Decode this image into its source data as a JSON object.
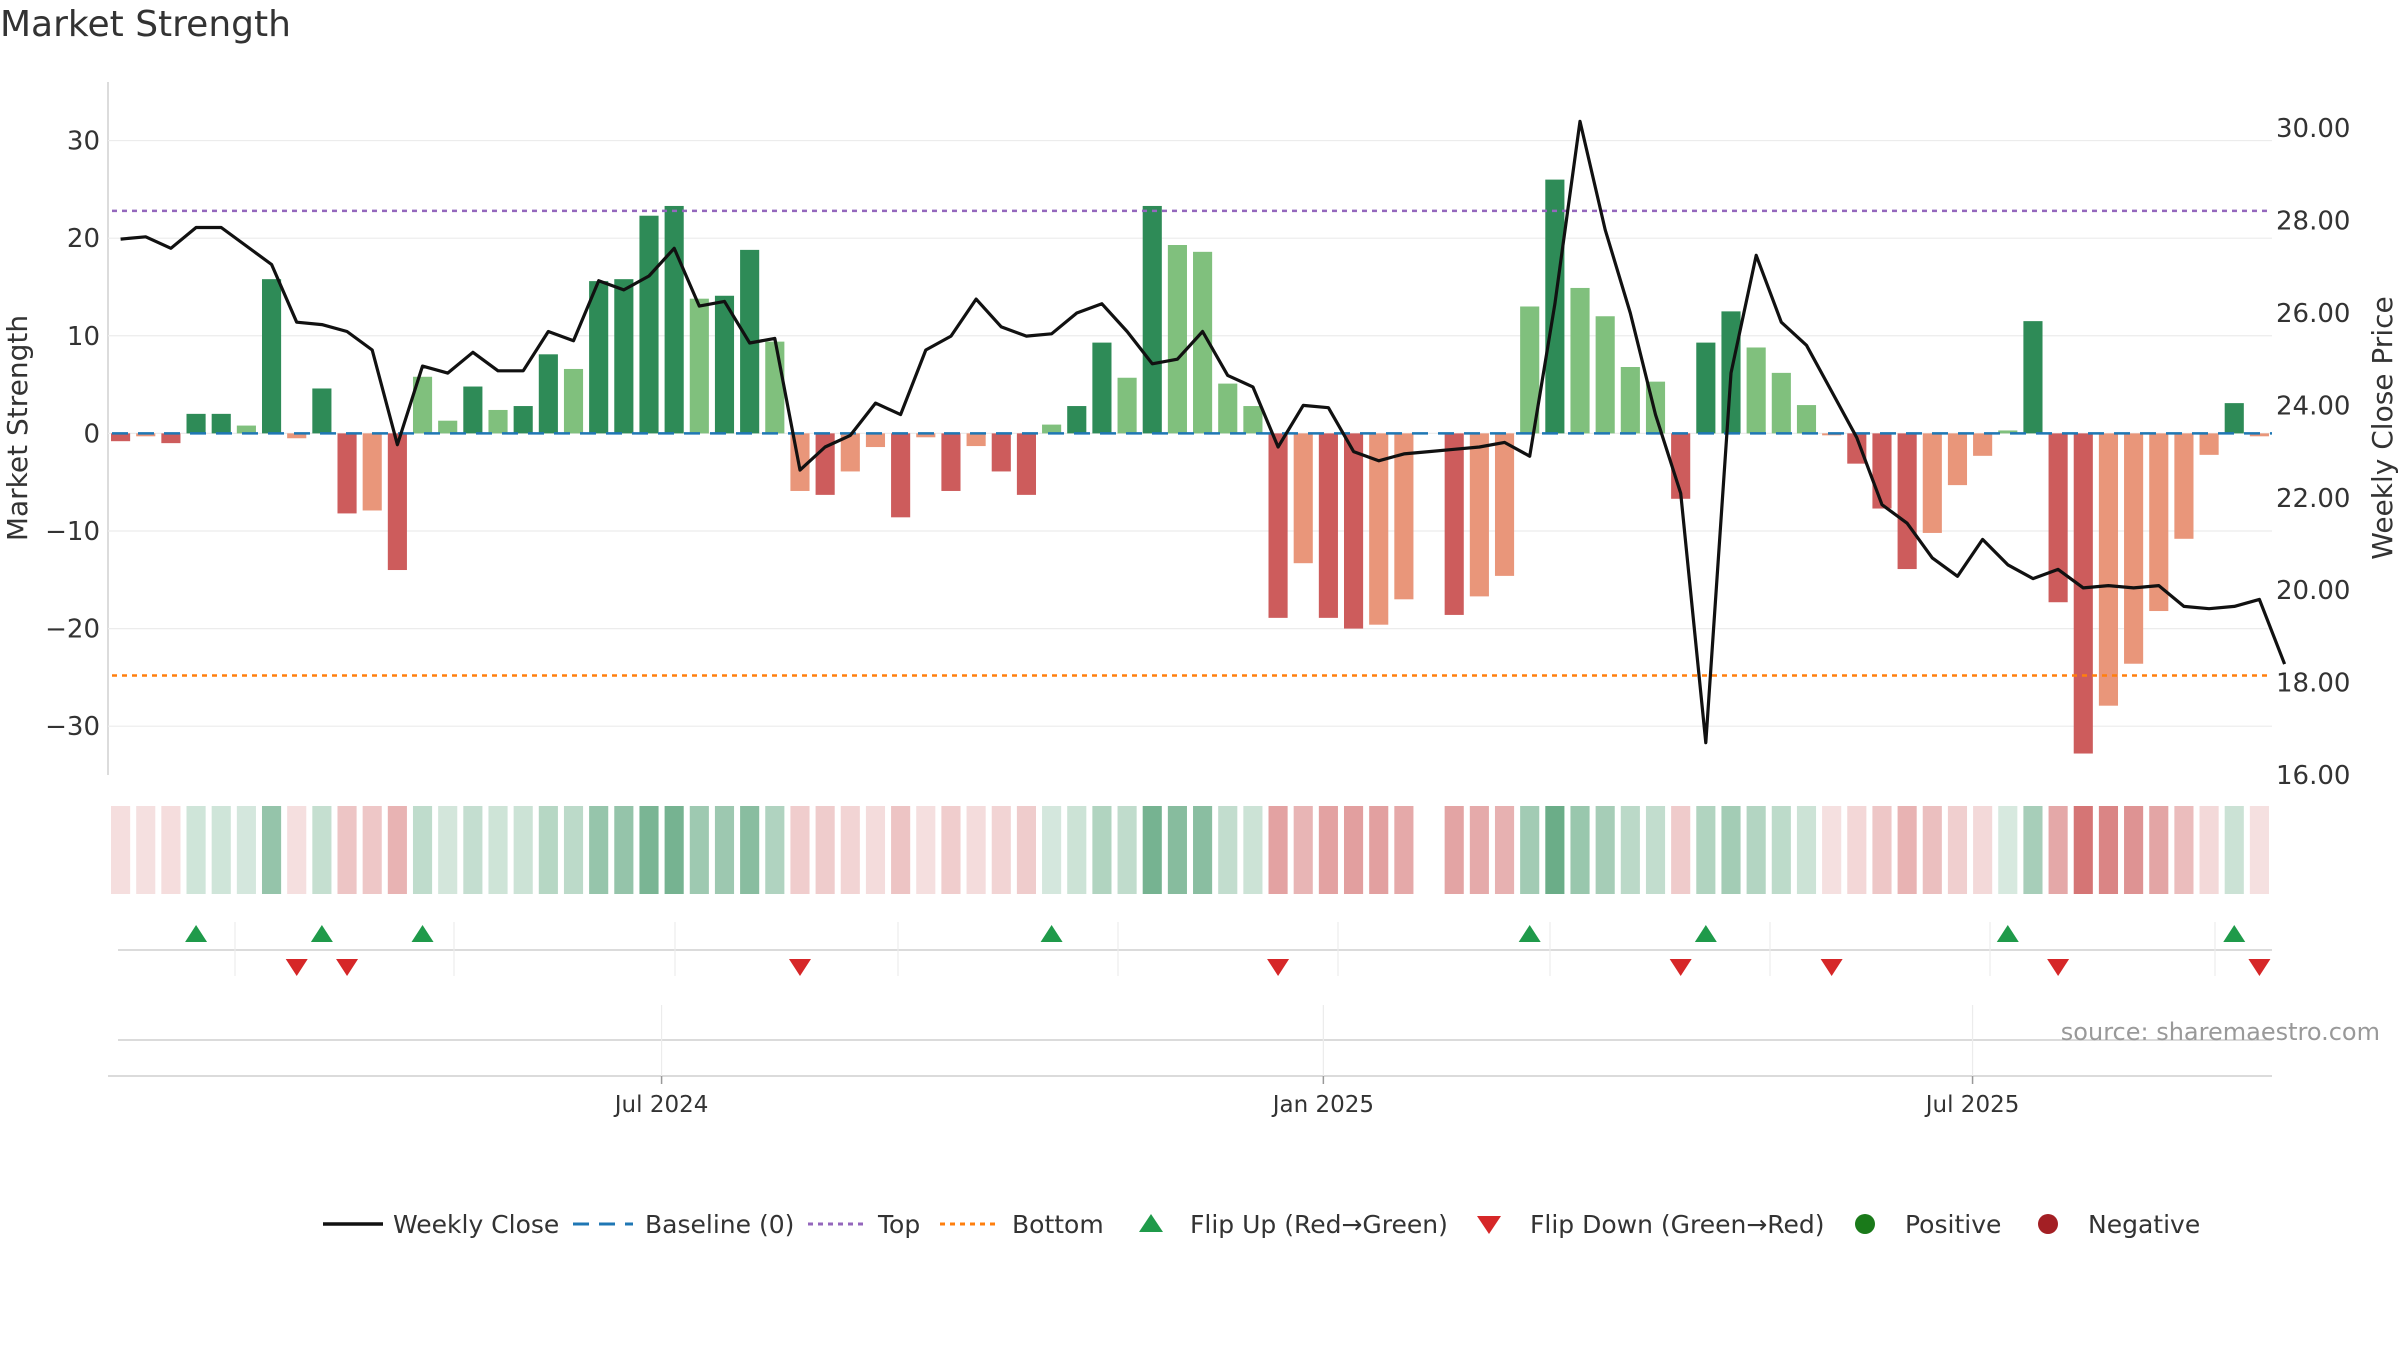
{
  "chart_data": {
    "type": "bar",
    "title": "Market Strength",
    "ylabel_left": "Market Strength",
    "ylabel_right": "Weekly Close Price",
    "ylim_left": [
      -35,
      36
    ],
    "ylim_right": [
      16,
      31
    ],
    "yticks_left": [
      30,
      20,
      10,
      0,
      -10,
      -20,
      -30
    ],
    "yticks_left_labels": [
      "30",
      "20",
      "10",
      "0",
      "−10",
      "−20",
      "−30"
    ],
    "yticks_right": [
      30,
      28,
      26,
      24,
      22,
      20,
      18,
      16
    ],
    "yticks_right_labels": [
      "30.00",
      "28.00",
      "26.00",
      "24.00",
      "22.00",
      "20.00",
      "18.00",
      "16.00"
    ],
    "x_ticks": [
      {
        "week": 22,
        "label": "Jul 2024"
      },
      {
        "week": 48.3,
        "label": "Jan 2025"
      },
      {
        "week": 74.1,
        "label": "Jul 2025"
      }
    ],
    "top_line": 22.8,
    "bottom_line": -24.8,
    "baseline": 0,
    "strength": [
      -0.8,
      -0.3,
      -1,
      2,
      2,
      0.8,
      15.8,
      -0.5,
      4.6,
      -8.2,
      -7.9,
      -14,
      5.8,
      1.3,
      4.8,
      2.4,
      2.8,
      8.1,
      6.6,
      15.6,
      15.8,
      22.3,
      23.3,
      13.8,
      14.1,
      18.8,
      9.4,
      -5.9,
      -6.3,
      -3.9,
      -1.4,
      -8.6,
      -0.4,
      -5.9,
      -1.3,
      -3.9,
      -6.3,
      0.9,
      2.8,
      9.3,
      5.7,
      23.3,
      19.3,
      18.6,
      5.1,
      2.8,
      -18.9,
      -13.3,
      -18.9,
      -20,
      -19.6,
      -17,
      null,
      -18.6,
      -16.7,
      -14.6,
      13,
      26,
      14.9,
      12,
      6.8,
      5.3,
      -6.7,
      9.3,
      12.5,
      8.8,
      6.2,
      2.9,
      -0.2,
      -3.1,
      -7.7,
      -13.9,
      -10.2,
      -5.3,
      -2.3,
      0.3,
      11.5,
      -17.3,
      -32.8,
      -27.9,
      -23.6,
      -18.2,
      -10.8,
      -2.2,
      3.1,
      -0.3
    ],
    "weekly_close": [
      27.6,
      27.65,
      27.4,
      27.85,
      27.85,
      27.45,
      27.05,
      25.8,
      25.75,
      25.6,
      25.2,
      23.15,
      24.85,
      24.7,
      25.15,
      24.75,
      24.75,
      25.6,
      25.4,
      26.7,
      26.5,
      26.8,
      27.4,
      26.15,
      26.25,
      25.35,
      25.45,
      22.6,
      23.1,
      23.35,
      24.05,
      23.8,
      25.2,
      25.5,
      26.3,
      25.7,
      25.5,
      25.55,
      26,
      26.2,
      25.6,
      24.9,
      25,
      25.6,
      24.65,
      24.4,
      23.1,
      24,
      23.95,
      23,
      22.8,
      22.95,
      23,
      23.05,
      23.1,
      23.2,
      22.9,
      26.2,
      30.15,
      27.8,
      26,
      23.8,
      22.1,
      16.7,
      24.7,
      27.25,
      25.8,
      25.3,
      24.3,
      23.3,
      21.85,
      21.45,
      20.7,
      20.3,
      21.1,
      20.55,
      20.25,
      20.45,
      20.05,
      20.1,
      20.05,
      20.1,
      19.65,
      19.6,
      19.65,
      19.8,
      18.4
    ],
    "flips_up": [
      3,
      8,
      12,
      37,
      56,
      63,
      75,
      84
    ],
    "flips_down": [
      7,
      9,
      27,
      46,
      62,
      68,
      77,
      85
    ],
    "legend": [
      "Weekly Close",
      "Baseline (0)",
      "Top",
      "Bottom",
      "Flip Up (Red→Green)",
      "Flip Down (Green→Red)",
      "Positive",
      "Negative"
    ],
    "colors": {
      "strong_pos": "#2e8b57",
      "weak_pos": "#80c07d",
      "strong_neg": "#cd5c5c",
      "weak_neg": "#e9967a",
      "line": "#111111",
      "baseline": "#1f77b4",
      "top": "#9467bd",
      "bottom": "#ff7f0e",
      "flip_up": "#1f9a4a",
      "flip_down": "#d62728",
      "positive_dot": "#1a7a1a",
      "negative_dot": "#a31f24"
    }
  },
  "source": "source: sharemaestro.com"
}
